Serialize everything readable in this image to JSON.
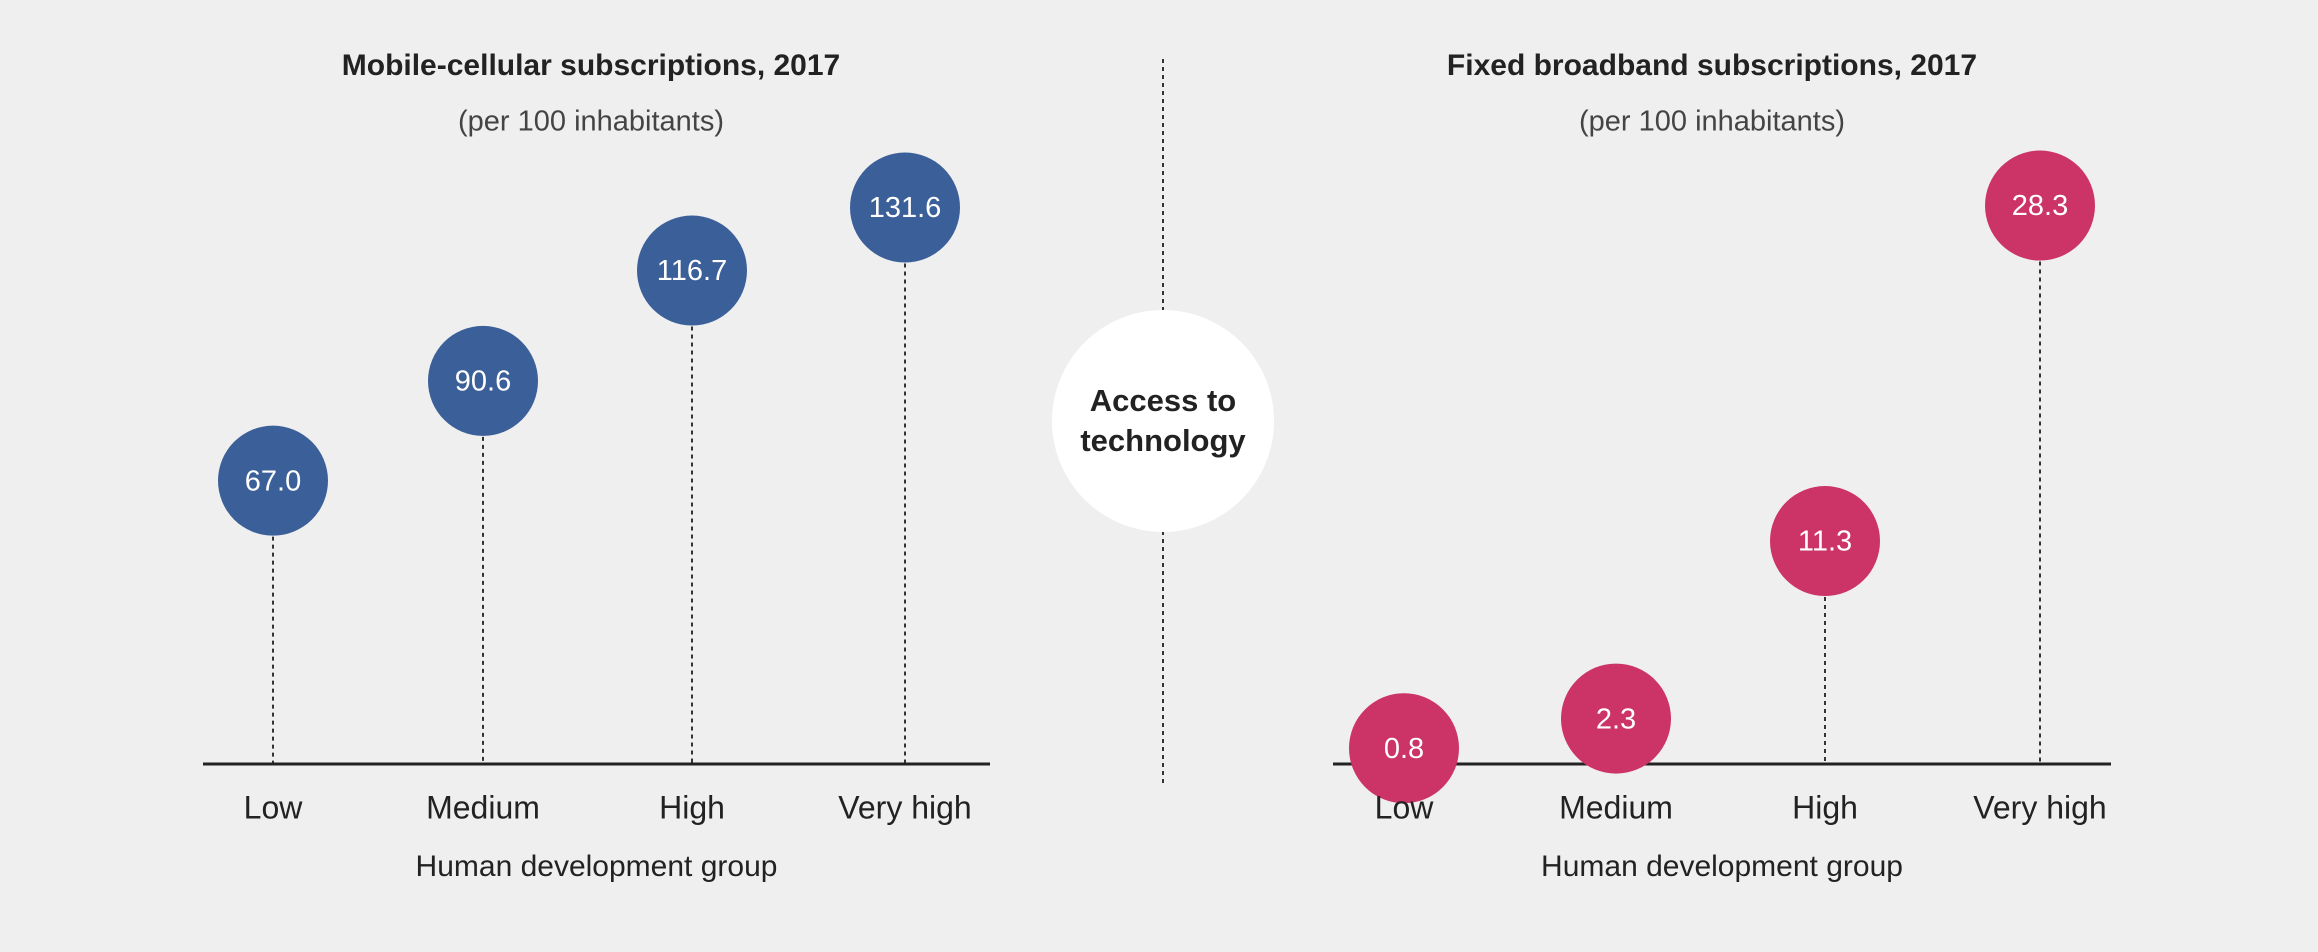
{
  "center_label": "Access to technology",
  "chart_data": [
    {
      "type": "lollipop",
      "title": "Mobile-cellular subscriptions, 2017",
      "subtitle": "(per 100 inhabitants)",
      "x_label": "Human development group",
      "categories": [
        "Low",
        "Medium",
        "High",
        "Very high"
      ],
      "values": [
        67.0,
        90.6,
        116.7,
        131.6
      ],
      "value_labels": [
        "67.0",
        "90.6",
        "116.7",
        "131.6"
      ],
      "color": "#3b5f99",
      "ylim": [
        0,
        140
      ]
    },
    {
      "type": "lollipop",
      "title": "Fixed broadband subscriptions, 2017",
      "subtitle": "(per 100 inhabitants)",
      "x_label": "Human development group",
      "categories": [
        "Low",
        "Medium",
        "High",
        "Very high"
      ],
      "values": [
        0.8,
        2.3,
        11.3,
        28.3
      ],
      "color": "#cc3366",
      "ylim": [
        0,
        30
      ]
    }
  ]
}
